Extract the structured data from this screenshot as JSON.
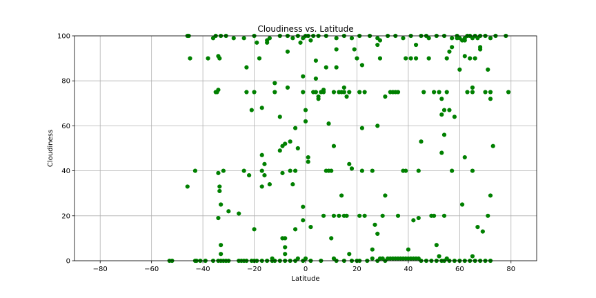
{
  "chart_data": {
    "type": "scatter",
    "title": "Cloudiness vs. Latitude",
    "xlabel": "Latitude",
    "ylabel": "Cloudiness",
    "xlim": [
      -90,
      90
    ],
    "ylim": [
      0,
      100
    ],
    "x_ticks": [
      "−80",
      "−60",
      "−40",
      "−20",
      "0",
      "20",
      "40",
      "60",
      "80"
    ],
    "y_ticks": [
      "0",
      "20",
      "40",
      "60",
      "80",
      "100"
    ],
    "grid": true,
    "marker_color": "#008000",
    "points": [
      [
        -46,
        33
      ],
      [
        -45.5,
        100
      ],
      [
        -45,
        90
      ],
      [
        -43,
        40
      ],
      [
        -42.5,
        0
      ],
      [
        -38,
        90
      ],
      [
        -35,
        75
      ],
      [
        -34.5,
        75
      ],
      [
        -34,
        76
      ],
      [
        -34,
        91
      ],
      [
        -33.5,
        90
      ],
      [
        -33,
        3
      ],
      [
        -34,
        39
      ],
      [
        -33.5,
        33
      ],
      [
        -33.5,
        31
      ],
      [
        -33,
        7
      ],
      [
        -33,
        25
      ],
      [
        -34,
        19
      ],
      [
        -32,
        40
      ],
      [
        -30,
        22
      ],
      [
        -31,
        100
      ],
      [
        -35,
        100
      ],
      [
        -26,
        21
      ],
      [
        -24,
        40
      ],
      [
        -23,
        86
      ],
      [
        -23,
        75
      ],
      [
        -22,
        38
      ],
      [
        -21,
        67
      ],
      [
        -20,
        75
      ],
      [
        -20,
        14
      ],
      [
        -19,
        97
      ],
      [
        -18,
        90
      ],
      [
        -17,
        68
      ],
      [
        -17,
        47
      ],
      [
        -17,
        40
      ],
      [
        -17,
        33
      ],
      [
        -16,
        43
      ],
      [
        -16,
        38
      ],
      [
        -15,
        98
      ],
      [
        -15,
        97
      ],
      [
        -14,
        34
      ],
      [
        -13,
        1
      ],
      [
        -12,
        79
      ],
      [
        -12,
        75
      ],
      [
        -10,
        64
      ],
      [
        -10,
        49
      ],
      [
        -9,
        51
      ],
      [
        -9,
        39
      ],
      [
        -9,
        10
      ],
      [
        -8,
        52
      ],
      [
        -8,
        10
      ],
      [
        -8,
        6
      ],
      [
        -8,
        3
      ],
      [
        -7,
        93
      ],
      [
        -7,
        77
      ],
      [
        -6,
        53
      ],
      [
        -6,
        40
      ],
      [
        -5,
        34
      ],
      [
        -4,
        40
      ],
      [
        -4,
        14
      ],
      [
        -4,
        59
      ],
      [
        -3,
        50
      ],
      [
        -2,
        97
      ],
      [
        -1,
        82
      ],
      [
        -1,
        75
      ],
      [
        -1,
        24
      ],
      [
        -1,
        18
      ],
      [
        0,
        67
      ],
      [
        0,
        62
      ],
      [
        1,
        46
      ],
      [
        1,
        44
      ],
      [
        1,
        100
      ],
      [
        2,
        98
      ],
      [
        2,
        15
      ],
      [
        3,
        75
      ],
      [
        4,
        89
      ],
      [
        4,
        81
      ],
      [
        4,
        75
      ],
      [
        5,
        73
      ],
      [
        5,
        72
      ],
      [
        6,
        75
      ],
      [
        7,
        75
      ],
      [
        7,
        76
      ],
      [
        7,
        20
      ],
      [
        8,
        86
      ],
      [
        8,
        40
      ],
      [
        9,
        61
      ],
      [
        9,
        40
      ],
      [
        10,
        10
      ],
      [
        10,
        40
      ],
      [
        11,
        75
      ],
      [
        11,
        51
      ],
      [
        11,
        20
      ],
      [
        12,
        94
      ],
      [
        12,
        86
      ],
      [
        13,
        75
      ],
      [
        13,
        20
      ],
      [
        14,
        29
      ],
      [
        14,
        75
      ],
      [
        15,
        77
      ],
      [
        15,
        75
      ],
      [
        15,
        20
      ],
      [
        16,
        73
      ],
      [
        16,
        20
      ],
      [
        17,
        75
      ],
      [
        17,
        43
      ],
      [
        17,
        3
      ],
      [
        18,
        41
      ],
      [
        19,
        94
      ],
      [
        20,
        90
      ],
      [
        21,
        20
      ],
      [
        21,
        75
      ],
      [
        22,
        87
      ],
      [
        22,
        59
      ],
      [
        22,
        40
      ],
      [
        23,
        75
      ],
      [
        23,
        20
      ],
      [
        26,
        5
      ],
      [
        26,
        40
      ],
      [
        27,
        16
      ],
      [
        28,
        96
      ],
      [
        28,
        60
      ],
      [
        28,
        12
      ],
      [
        29,
        98
      ],
      [
        29,
        90
      ],
      [
        30,
        20
      ],
      [
        31,
        73
      ],
      [
        31,
        29
      ],
      [
        33,
        75
      ],
      [
        34,
        75
      ],
      [
        35,
        75
      ],
      [
        36,
        75
      ],
      [
        36,
        20
      ],
      [
        38,
        40
      ],
      [
        39,
        90
      ],
      [
        39,
        40
      ],
      [
        40,
        5
      ],
      [
        41,
        90
      ],
      [
        42,
        18
      ],
      [
        43,
        96
      ],
      [
        43,
        90
      ],
      [
        44,
        40
      ],
      [
        44,
        19
      ],
      [
        45,
        53
      ],
      [
        46,
        75
      ],
      [
        47,
        100
      ],
      [
        48,
        90
      ],
      [
        49,
        20
      ],
      [
        50,
        75
      ],
      [
        50,
        20
      ],
      [
        51,
        7
      ],
      [
        52,
        2
      ],
      [
        52,
        75
      ],
      [
        53,
        72
      ],
      [
        53,
        65
      ],
      [
        53,
        48
      ],
      [
        54,
        67
      ],
      [
        54,
        56
      ],
      [
        54,
        20
      ],
      [
        55,
        90
      ],
      [
        55,
        75
      ],
      [
        56,
        93
      ],
      [
        56,
        67
      ],
      [
        57,
        40
      ],
      [
        57,
        95
      ],
      [
        58,
        64
      ],
      [
        59,
        99
      ],
      [
        60,
        85
      ],
      [
        61,
        25
      ],
      [
        62,
        98
      ],
      [
        62,
        46
      ],
      [
        62,
        91
      ],
      [
        63,
        75
      ],
      [
        64,
        90
      ],
      [
        65,
        77
      ],
      [
        65,
        75
      ],
      [
        65,
        40
      ],
      [
        65,
        2
      ],
      [
        66,
        90
      ],
      [
        67,
        15
      ],
      [
        68,
        95
      ],
      [
        68,
        94
      ],
      [
        69,
        13
      ],
      [
        70,
        75
      ],
      [
        71,
        85
      ],
      [
        71,
        20
      ],
      [
        72,
        75
      ],
      [
        72,
        72
      ],
      [
        72,
        29
      ],
      [
        73,
        51
      ],
      [
        74,
        100
      ],
      [
        78,
        100
      ],
      [
        79,
        75
      ],
      [
        -53,
        0
      ],
      [
        -52,
        0
      ],
      [
        -43,
        0
      ],
      [
        -41,
        0
      ],
      [
        -39,
        0
      ],
      [
        -36,
        0
      ],
      [
        -34,
        0
      ],
      [
        -33,
        0
      ],
      [
        -32,
        0
      ],
      [
        -31,
        0
      ],
      [
        -30,
        0
      ],
      [
        -26,
        0
      ],
      [
        -25,
        0
      ],
      [
        -24,
        0
      ],
      [
        -23,
        0
      ],
      [
        -21,
        0
      ],
      [
        -20,
        0
      ],
      [
        -19,
        0
      ],
      [
        -17,
        0
      ],
      [
        -15,
        0
      ],
      [
        -13,
        0
      ],
      [
        -12,
        0
      ],
      [
        -10,
        0
      ],
      [
        -8,
        0
      ],
      [
        -6,
        0
      ],
      [
        -4,
        0
      ],
      [
        -3,
        1
      ],
      [
        -1,
        0
      ],
      [
        0,
        1
      ],
      [
        2,
        0
      ],
      [
        6,
        0
      ],
      [
        11,
        1
      ],
      [
        12,
        0
      ],
      [
        15,
        0
      ],
      [
        18,
        0
      ],
      [
        20,
        0
      ],
      [
        21,
        0
      ],
      [
        24,
        0
      ],
      [
        26,
        1
      ],
      [
        28,
        0
      ],
      [
        29,
        1
      ],
      [
        30,
        1
      ],
      [
        31,
        0
      ],
      [
        32,
        1
      ],
      [
        33,
        1
      ],
      [
        34,
        1
      ],
      [
        35,
        1
      ],
      [
        36,
        1
      ],
      [
        37,
        1
      ],
      [
        38,
        1
      ],
      [
        39,
        1
      ],
      [
        40,
        1
      ],
      [
        41,
        1
      ],
      [
        42,
        1
      ],
      [
        43,
        1
      ],
      [
        44,
        1
      ],
      [
        45,
        0
      ],
      [
        47,
        0
      ],
      [
        49,
        0
      ],
      [
        51,
        0
      ],
      [
        53,
        0
      ],
      [
        54,
        0
      ],
      [
        55,
        1
      ],
      [
        56,
        0
      ],
      [
        58,
        0
      ],
      [
        60,
        0
      ],
      [
        62,
        0
      ],
      [
        64,
        0
      ],
      [
        66,
        0
      ],
      [
        68,
        0
      ],
      [
        70,
        0
      ],
      [
        72,
        0
      ],
      [
        -46,
        100
      ],
      [
        -36,
        99
      ],
      [
        -33,
        100
      ],
      [
        -28,
        99
      ],
      [
        -24,
        99
      ],
      [
        -20,
        100
      ],
      [
        -14,
        99
      ],
      [
        -10,
        100
      ],
      [
        -7,
        100
      ],
      [
        -5,
        99
      ],
      [
        -3,
        100
      ],
      [
        -1,
        99
      ],
      [
        0,
        100
      ],
      [
        3,
        100
      ],
      [
        5,
        100
      ],
      [
        8,
        100
      ],
      [
        12,
        99
      ],
      [
        15,
        100
      ],
      [
        18,
        99
      ],
      [
        21,
        100
      ],
      [
        25,
        100
      ],
      [
        28,
        99
      ],
      [
        32,
        100
      ],
      [
        35,
        100
      ],
      [
        38,
        99
      ],
      [
        41,
        100
      ],
      [
        45,
        100
      ],
      [
        48,
        99
      ],
      [
        51,
        100
      ],
      [
        54,
        100
      ],
      [
        57,
        99
      ],
      [
        59,
        100
      ],
      [
        60,
        99
      ],
      [
        61,
        98
      ],
      [
        62,
        99
      ],
      [
        63,
        100
      ],
      [
        64,
        100
      ],
      [
        65,
        99
      ],
      [
        66,
        100
      ],
      [
        67,
        99
      ],
      [
        68,
        100
      ],
      [
        70,
        100
      ],
      [
        72,
        99
      ]
    ]
  }
}
